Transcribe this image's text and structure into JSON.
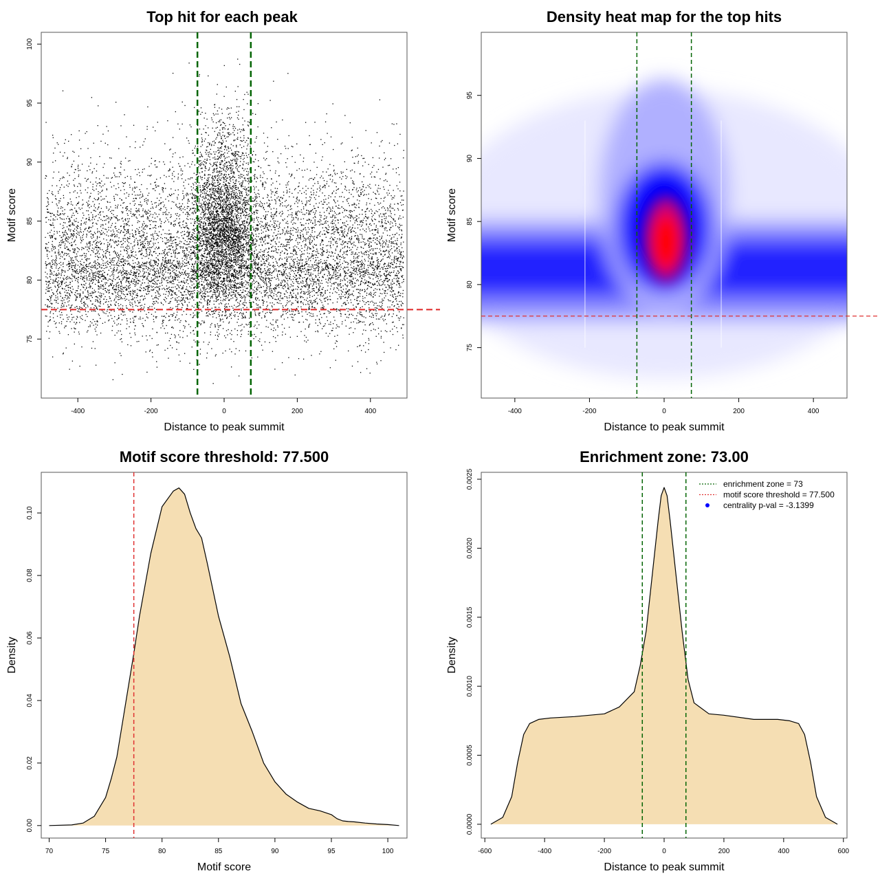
{
  "colors": {
    "threshold_line": "#e03030",
    "zone_line": "#006400",
    "fill": "#f5deb3",
    "points": "#000000",
    "heat_low": "#ffffff",
    "heat_mid": "#0000ff",
    "heat_high": "#ff0000",
    "legend_point": "#0000ff"
  },
  "chart_data": [
    {
      "type": "scatter",
      "title": "Top hit for each peak",
      "xlabel": "Distance to peak summit",
      "ylabel": "Motif score",
      "xlim": [
        -500,
        500
      ],
      "ylim": [
        70,
        101
      ],
      "xticks": [
        -400,
        -200,
        0,
        200,
        400
      ],
      "yticks": [
        75,
        80,
        85,
        90,
        95,
        100
      ],
      "threshold": 77.5,
      "enrichment_zone": [
        -73,
        73
      ],
      "point_distribution": {
        "background": {
          "x_range": [
            -490,
            490
          ],
          "y_mode": 81.5,
          "y_sd": 3.4
        },
        "central": {
          "x_mean": 0,
          "x_sd": 45,
          "y_mode": 84.5,
          "y_sd": 3.5
        }
      },
      "grid": false
    },
    {
      "type": "heatmap",
      "title": "Density heat map for the top hits",
      "xlabel": "Distance to peak summit",
      "ylabel": "Motif score",
      "xlim": [
        -490,
        490
      ],
      "ylim": [
        71,
        100
      ],
      "xticks": [
        -400,
        -200,
        0,
        200,
        400
      ],
      "yticks": [
        75,
        80,
        85,
        90,
        95
      ],
      "threshold": 77.5,
      "enrichment_zone": [
        -73,
        73
      ],
      "colormap": [
        "white",
        "blue",
        "red"
      ],
      "grid": false
    },
    {
      "type": "area",
      "title": "Motif score threshold: 77.500",
      "xlabel": "Motif score",
      "ylabel": "Density",
      "xlim": [
        69.3,
        101.7
      ],
      "ylim": [
        -0.004,
        0.113
      ],
      "xticks": [
        70,
        75,
        80,
        85,
        90,
        95,
        100
      ],
      "yticks": [
        0.0,
        0.02,
        0.04,
        0.06,
        0.08,
        0.1
      ],
      "ytick_labels": [
        "0.00",
        "0.02",
        "0.04",
        "0.06",
        "0.08",
        "0.10"
      ],
      "threshold": 77.5,
      "x": [
        70,
        72,
        73,
        74,
        75,
        75.5,
        76,
        76.5,
        77,
        77.5,
        78,
        79,
        80,
        81,
        81.5,
        82,
        82.5,
        83,
        83.5,
        84,
        85,
        86,
        87,
        88,
        89,
        90,
        91,
        92,
        93,
        94,
        95,
        95.5,
        96,
        96.5,
        97,
        98,
        99,
        100,
        101
      ],
      "y": [
        0.0,
        0.0002,
        0.0008,
        0.003,
        0.009,
        0.015,
        0.022,
        0.033,
        0.044,
        0.055,
        0.067,
        0.087,
        0.102,
        0.107,
        0.108,
        0.106,
        0.1,
        0.095,
        0.092,
        0.084,
        0.067,
        0.054,
        0.039,
        0.03,
        0.02,
        0.014,
        0.01,
        0.0075,
        0.0055,
        0.0047,
        0.0035,
        0.0022,
        0.0015,
        0.0013,
        0.0012,
        0.0008,
        0.0005,
        0.0003,
        0.0
      ],
      "grid": false
    },
    {
      "type": "area",
      "title": "Enrichment zone: 73.00",
      "xlabel": "Distance to peak summit",
      "ylabel": "Density",
      "xlim": [
        -612,
        612
      ],
      "ylim": [
        -0.0001,
        0.00255
      ],
      "xticks": [
        -600,
        -400,
        -200,
        0,
        200,
        400,
        600
      ],
      "yticks": [
        0.0,
        0.0005,
        0.001,
        0.0015,
        0.002,
        0.0025
      ],
      "ytick_labels": [
        "0.0000",
        "0.0005",
        "0.0010",
        "0.0015",
        "0.0020",
        "0.0025"
      ],
      "enrichment_zone": [
        -73,
        73
      ],
      "x": [
        -580,
        -540,
        -510,
        -490,
        -470,
        -450,
        -420,
        -380,
        -300,
        -200,
        -150,
        -100,
        -80,
        -60,
        -40,
        -20,
        -10,
        0,
        10,
        20,
        40,
        60,
        80,
        100,
        150,
        200,
        300,
        380,
        420,
        450,
        470,
        490,
        510,
        540,
        580
      ],
      "y": [
        0.0,
        5e-05,
        0.0002,
        0.00045,
        0.00065,
        0.00073,
        0.00076,
        0.00077,
        0.00078,
        0.0008,
        0.00085,
        0.00096,
        0.00115,
        0.0014,
        0.0018,
        0.0022,
        0.00238,
        0.00244,
        0.00238,
        0.0022,
        0.0018,
        0.0014,
        0.00105,
        0.00088,
        0.0008,
        0.00079,
        0.00076,
        0.00076,
        0.00075,
        0.00073,
        0.00065,
        0.00045,
        0.0002,
        5e-05,
        0.0
      ],
      "legend": {
        "position": "top-right",
        "entries": [
          {
            "label": "enrichment zone = 73",
            "style": "dotted-line",
            "color": "#006400"
          },
          {
            "label": "motif score threshold = 77.500",
            "style": "dotted-line",
            "color": "#e03030"
          },
          {
            "label": "centrality p-val = -3.1399",
            "style": "point",
            "color": "#0000ff"
          }
        ]
      },
      "grid": false
    }
  ]
}
